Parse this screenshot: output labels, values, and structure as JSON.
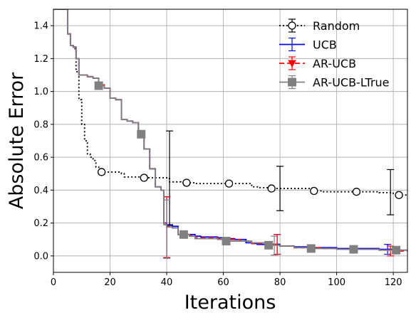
{
  "chart_data": {
    "type": "line",
    "title": "",
    "xlabel": "Iterations",
    "ylabel": "Absolute Error",
    "xlim": [
      0,
      125
    ],
    "ylim": [
      -0.1,
      1.5
    ],
    "x_ticks": [
      "0",
      "20",
      "40",
      "60",
      "80",
      "100",
      "120"
    ],
    "y_ticks": [
      "0.0",
      "0.2",
      "0.4",
      "0.6",
      "0.8",
      "1.0",
      "1.2",
      "1.4"
    ],
    "grid": true,
    "legend_position": "top-right",
    "series": [
      {
        "name": "Random",
        "color": "#000000",
        "linestyle": "dotted",
        "marker": "open-circle",
        "x": [
          0,
          4,
          5,
          6,
          7,
          8,
          9,
          10,
          11,
          12,
          13,
          14,
          15,
          16,
          17,
          20,
          24,
          25,
          29,
          30,
          32,
          40,
          41,
          45,
          50,
          60,
          62,
          70,
          72,
          75,
          77,
          90,
          92,
          95,
          100,
          107,
          110,
          115,
          120,
          121,
          125
        ],
        "y": [
          1.5,
          1.5,
          1.35,
          1.28,
          1.26,
          1.12,
          0.95,
          0.8,
          0.7,
          0.62,
          0.6,
          0.58,
          0.54,
          0.52,
          0.51,
          0.51,
          0.5,
          0.48,
          0.48,
          0.48,
          0.475,
          0.47,
          0.45,
          0.445,
          0.44,
          0.44,
          0.44,
          0.42,
          0.415,
          0.415,
          0.41,
          0.41,
          0.395,
          0.39,
          0.39,
          0.39,
          0.39,
          0.385,
          0.38,
          0.37,
          0.365
        ],
        "markers_x": [
          17,
          32,
          47,
          62,
          77,
          92,
          107,
          122
        ],
        "markers_y": [
          0.51,
          0.475,
          0.445,
          0.44,
          0.41,
          0.395,
          0.39,
          0.37
        ],
        "errorbars": [
          {
            "x": 41,
            "low": 0.19,
            "high": 0.76
          },
          {
            "x": 80,
            "low": 0.275,
            "high": 0.545
          },
          {
            "x": 119,
            "low": 0.25,
            "high": 0.525
          }
        ]
      },
      {
        "name": "UCB",
        "color": "#0000ff",
        "linestyle": "solid",
        "marker": "none",
        "x": [
          0,
          4,
          5,
          6,
          7,
          8,
          9,
          10,
          12,
          14,
          16,
          18,
          20,
          22,
          24,
          26,
          28,
          30,
          32,
          34,
          36,
          38,
          39,
          40,
          42,
          44,
          46,
          48,
          50,
          52,
          56,
          58,
          62,
          64,
          66,
          68,
          70,
          72,
          75,
          80,
          85,
          90,
          95,
          100,
          110,
          115,
          120,
          125
        ],
        "y": [
          1.5,
          1.5,
          1.35,
          1.28,
          1.27,
          1.2,
          1.1,
          1.1,
          1.09,
          1.08,
          1.04,
          1.02,
          0.96,
          0.95,
          0.83,
          0.82,
          0.81,
          0.75,
          0.65,
          0.53,
          0.42,
          0.4,
          0.2,
          0.185,
          0.18,
          0.13,
          0.13,
          0.13,
          0.12,
          0.115,
          0.115,
          0.11,
          0.105,
          0.1,
          0.1,
          0.08,
          0.075,
          0.07,
          0.07,
          0.06,
          0.055,
          0.05,
          0.05,
          0.045,
          0.045,
          0.04,
          0.035,
          0.03
        ],
        "errorbars": [
          {
            "x": 40,
            "low": -0.01,
            "high": 0.36
          },
          {
            "x": 79,
            "low": 0.01,
            "high": 0.13
          },
          {
            "x": 118,
            "low": 0.01,
            "high": 0.07
          }
        ]
      },
      {
        "name": "AR-UCB",
        "color": "#ff0000",
        "linestyle": "dashed",
        "marker": "triangle-down",
        "x": [
          0,
          4,
          5,
          6,
          7,
          8,
          9,
          10,
          12,
          14,
          16,
          18,
          20,
          22,
          24,
          26,
          28,
          30,
          32,
          34,
          36,
          38,
          39,
          40,
          42,
          44,
          46,
          48,
          50,
          54,
          58,
          62,
          66,
          70,
          75,
          80,
          85,
          90,
          95,
          100,
          110,
          115,
          120,
          125
        ],
        "y": [
          1.5,
          1.5,
          1.35,
          1.28,
          1.27,
          1.2,
          1.1,
          1.1,
          1.09,
          1.08,
          1.04,
          1.02,
          0.96,
          0.95,
          0.83,
          0.82,
          0.81,
          0.75,
          0.65,
          0.53,
          0.42,
          0.4,
          0.2,
          0.18,
          0.17,
          0.13,
          0.13,
          0.125,
          0.11,
          0.11,
          0.105,
          0.1,
          0.09,
          0.075,
          0.07,
          0.06,
          0.05,
          0.05,
          0.045,
          0.04,
          0.04,
          0.035,
          0.03,
          0.03
        ],
        "errorbars": [
          {
            "x": 40,
            "low": -0.01,
            "high": 0.36
          },
          {
            "x": 79,
            "low": 0.01,
            "high": 0.13
          },
          {
            "x": 119,
            "low": 0.0,
            "high": 0.06
          }
        ]
      },
      {
        "name": "AR-UCB-LTrue",
        "color": "#808080",
        "linestyle": "solid",
        "marker": "filled-square",
        "x": [
          0,
          4,
          5,
          6,
          7,
          8,
          9,
          10,
          12,
          14,
          16,
          18,
          20,
          22,
          24,
          26,
          28,
          30,
          32,
          34,
          36,
          38,
          39,
          40,
          42,
          44,
          46,
          48,
          50,
          54,
          58,
          62,
          66,
          70,
          75,
          80,
          85,
          90,
          95,
          100,
          110,
          115,
          120,
          125
        ],
        "y": [
          1.5,
          1.5,
          1.35,
          1.28,
          1.27,
          1.2,
          1.1,
          1.1,
          1.09,
          1.08,
          1.035,
          1.02,
          0.96,
          0.95,
          0.83,
          0.82,
          0.81,
          0.74,
          0.65,
          0.53,
          0.42,
          0.4,
          0.19,
          0.175,
          0.17,
          0.13,
          0.13,
          0.12,
          0.105,
          0.105,
          0.1,
          0.09,
          0.09,
          0.08,
          0.065,
          0.06,
          0.05,
          0.045,
          0.045,
          0.04,
          0.04,
          0.035,
          0.035,
          0.03
        ],
        "markers_x": [
          16,
          31,
          46,
          61,
          76,
          91,
          106,
          121
        ],
        "markers_y": [
          1.035,
          0.74,
          0.13,
          0.09,
          0.065,
          0.045,
          0.04,
          0.035
        ],
        "errorbars": [
          {
            "x": 40,
            "low": -0.015,
            "high": 0.34
          },
          {
            "x": 78,
            "low": 0.005,
            "high": 0.12
          },
          {
            "x": 121,
            "low": 0.02,
            "high": 0.05
          }
        ]
      }
    ]
  }
}
